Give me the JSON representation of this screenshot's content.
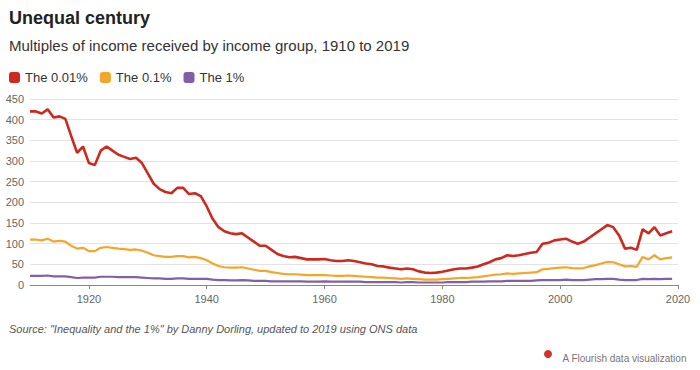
{
  "chart_data": {
    "type": "line",
    "title": "Unequal century",
    "subtitle": "Multiples of income received by income group, 1910 to 2019",
    "source": "Source: \"Inequality and the 1%\" by Danny Dorling, updated to 2019 using ONS data",
    "credit": "A Flourish data visualization",
    "x": [
      1910,
      1911,
      1912,
      1913,
      1914,
      1915,
      1916,
      1917,
      1918,
      1919,
      1920,
      1921,
      1922,
      1923,
      1924,
      1925,
      1926,
      1927,
      1928,
      1929,
      1930,
      1931,
      1932,
      1933,
      1934,
      1935,
      1936,
      1937,
      1938,
      1939,
      1940,
      1941,
      1942,
      1943,
      1944,
      1945,
      1946,
      1947,
      1948,
      1949,
      1950,
      1951,
      1952,
      1953,
      1954,
      1955,
      1956,
      1957,
      1958,
      1959,
      1960,
      1961,
      1962,
      1963,
      1964,
      1965,
      1966,
      1967,
      1968,
      1969,
      1970,
      1971,
      1972,
      1973,
      1974,
      1975,
      1976,
      1977,
      1978,
      1979,
      1980,
      1981,
      1982,
      1983,
      1984,
      1985,
      1986,
      1987,
      1988,
      1989,
      1990,
      1991,
      1992,
      1993,
      1994,
      1995,
      1996,
      1997,
      1998,
      1999,
      2000,
      2001,
      2002,
      2003,
      2004,
      2005,
      2006,
      2007,
      2008,
      2009,
      2010,
      2011,
      2012,
      2013,
      2014,
      2015,
      2016,
      2017,
      2018,
      2019
    ],
    "series": [
      {
        "name": "The 0.01%",
        "color": "#cc2a1e",
        "values": [
          420,
          420,
          415,
          425,
          405,
          408,
          402,
          360,
          320,
          335,
          295,
          290,
          325,
          335,
          325,
          315,
          310,
          305,
          308,
          295,
          270,
          245,
          232,
          225,
          222,
          235,
          235,
          220,
          222,
          215,
          190,
          160,
          140,
          130,
          125,
          123,
          125,
          115,
          105,
          95,
          95,
          85,
          75,
          70,
          67,
          68,
          65,
          62,
          62,
          62,
          63,
          60,
          58,
          58,
          60,
          58,
          55,
          52,
          50,
          46,
          45,
          42,
          40,
          38,
          40,
          38,
          33,
          30,
          29,
          30,
          32,
          35,
          38,
          40,
          40,
          42,
          45,
          50,
          55,
          62,
          65,
          72,
          70,
          72,
          75,
          78,
          80,
          100,
          102,
          108,
          110,
          112,
          105,
          100,
          105,
          115,
          125,
          135,
          145,
          140,
          120,
          88,
          90,
          85,
          135,
          125,
          140,
          120,
          125,
          130
        ]
      },
      {
        "name": "The 0.1%",
        "color": "#f4a62a",
        "values": [
          110,
          110,
          108,
          112,
          105,
          107,
          105,
          95,
          88,
          90,
          82,
          82,
          90,
          92,
          90,
          88,
          87,
          85,
          86,
          83,
          78,
          72,
          70,
          68,
          68,
          70,
          70,
          67,
          68,
          65,
          60,
          52,
          46,
          43,
          42,
          42,
          43,
          40,
          37,
          34,
          34,
          31,
          29,
          27,
          26,
          26,
          25,
          24,
          24,
          24,
          24,
          23,
          22,
          22,
          23,
          22,
          21,
          20,
          19,
          18,
          18,
          17,
          16,
          15,
          16,
          15,
          14,
          13,
          13,
          13,
          14,
          15,
          16,
          17,
          17,
          18,
          19,
          21,
          23,
          25,
          26,
          28,
          27,
          28,
          29,
          30,
          31,
          38,
          39,
          41,
          42,
          43,
          41,
          40,
          41,
          45,
          48,
          52,
          56,
          55,
          50,
          45,
          46,
          44,
          68,
          62,
          72,
          62,
          65,
          67
        ]
      },
      {
        "name": "The 1%",
        "color": "#845ea8",
        "values": [
          22,
          22,
          22,
          23,
          21,
          21,
          21,
          19,
          17,
          18,
          18,
          18,
          20,
          20,
          20,
          19,
          19,
          19,
          19,
          18,
          17,
          16,
          16,
          15,
          15,
          16,
          16,
          15,
          15,
          15,
          15,
          13,
          12,
          12,
          11,
          11,
          12,
          11,
          10,
          10,
          10,
          9,
          9,
          9,
          9,
          9,
          9,
          8,
          8,
          8,
          9,
          8,
          8,
          8,
          8,
          8,
          8,
          7,
          7,
          7,
          7,
          7,
          7,
          6,
          7,
          7,
          6,
          6,
          6,
          6,
          6,
          7,
          7,
          7,
          7,
          8,
          8,
          8,
          9,
          9,
          9,
          10,
          10,
          10,
          10,
          10,
          11,
          12,
          12,
          12,
          12,
          13,
          12,
          12,
          12,
          13,
          14,
          14,
          15,
          15,
          13,
          12,
          12,
          12,
          15,
          14,
          15,
          14,
          15,
          15
        ]
      }
    ],
    "xlim": [
      1910,
      2020
    ],
    "xticks": [
      1920,
      1940,
      1960,
      1980,
      2000,
      2020
    ],
    "ylim": [
      0,
      450
    ],
    "yticks": [
      0,
      50,
      100,
      150,
      200,
      250,
      300,
      350,
      400,
      450
    ],
    "grid": true,
    "legend": "top-left"
  }
}
